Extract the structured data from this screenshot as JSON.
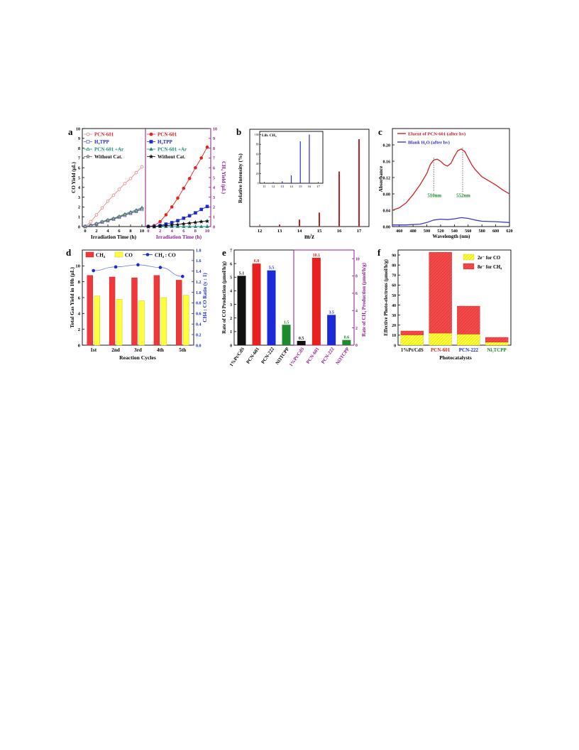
{
  "panels": [
    {
      "letter": "a",
      "left": {
        "ylabel": "CO Yield (μL)",
        "xlabel": "Irradiation Time (h)",
        "legend": [
          "PCN-601",
          "H₄TPP",
          "PCN-601 +Ar",
          "Without Cat."
        ]
      },
      "right": {
        "ylabel": "CH₄ Yield (μL)",
        "xlabel": "Irradiation Time (h)",
        "legend": [
          "PCN-601",
          "H₄TPP",
          "PCN-601 +Ar",
          "Without Cat."
        ]
      }
    },
    {
      "letter": "b",
      "ylabel": "Relative Intensity (%)",
      "xlabel": "m/z",
      "inset": {
        "title": "Lib. CH₄",
        "ylabel": "Relative Intensity (%)",
        "xlabel": "m/z"
      }
    },
    {
      "letter": "c",
      "ylabel": "Absorbance",
      "xlabel": "Wavelength (nm)",
      "legend": [
        "Eluent of PCN-601 (after hv)",
        "Blank H₂O (after hv)"
      ],
      "annotations": [
        "510nm",
        "552nm"
      ]
    },
    {
      "letter": "d",
      "ylabel": "Total Gas Yield in 10h (μL)",
      "y2label": "CH4 : CO Ratio (y : 1)",
      "xlabel": "Reaction Cycles",
      "legend": [
        "CH₄",
        "CO",
        "CH₄ : CO"
      ]
    },
    {
      "letter": "e",
      "ylabel": "Rate of CO Production (μmol/h/g)",
      "y2label": "Rate of CH₄ Production (μmol/h/g)"
    },
    {
      "letter": "f",
      "ylabel": "Effective Photo-electrons (μmol/h/g)",
      "xlabel": "Photocatalysts",
      "legend": [
        "2e⁻ for CO",
        "8e⁻ for CH₄"
      ]
    }
  ],
  "colors": {
    "red": "#e8201f",
    "blue": "#1a2ad8",
    "green": "#1d8b2c",
    "black": "#111111",
    "pink": "#e88a8a",
    "purple": "#8a1e8a",
    "yellow": "#ffff3a",
    "spectrum_red": "#d42020",
    "spectrum_blue": "#3a3ad0",
    "teal": "#1e8a7a"
  },
  "chart_data": [
    {
      "id": "a-left",
      "type": "line",
      "xlabel": "Irradiation Time (h)",
      "ylabel": "CO Yield (μL)",
      "xlim": [
        0,
        10
      ],
      "ylim": [
        0,
        10
      ],
      "xticks": [
        0,
        2,
        4,
        6,
        8,
        10
      ],
      "yticks": [
        0,
        1,
        2,
        3,
        4,
        5,
        6,
        7,
        8,
        9,
        10
      ],
      "series": [
        {
          "name": "PCN-601",
          "color": "#e88a8a",
          "marker": "circle-open",
          "x": [
            0,
            1,
            2,
            3,
            4,
            5,
            6,
            7,
            8,
            9,
            10
          ],
          "y": [
            0,
            0.5,
            1.2,
            1.9,
            2.6,
            3.2,
            3.8,
            4.4,
            4.9,
            5.5,
            6.1
          ]
        },
        {
          "name": "H₄TPP",
          "color": "#6a6ad8",
          "marker": "square-open",
          "x": [
            0,
            1,
            2,
            3,
            4,
            5,
            6,
            7,
            8,
            9,
            10
          ],
          "y": [
            0,
            0.1,
            0.25,
            0.45,
            0.6,
            0.75,
            0.95,
            1.15,
            1.35,
            1.55,
            1.75
          ]
        },
        {
          "name": "PCN-601 +Ar",
          "color": "#2aa07a",
          "marker": "triangle-open",
          "x": [
            0,
            1,
            2,
            3,
            4,
            5,
            6,
            7,
            8,
            9,
            10
          ],
          "y": [
            0,
            0.12,
            0.3,
            0.5,
            0.7,
            0.85,
            1.05,
            1.3,
            1.5,
            1.7,
            1.95
          ]
        },
        {
          "name": "Without Cat.",
          "color": "#666666",
          "marker": "star-open",
          "x": [
            0,
            1,
            2,
            3,
            4,
            5,
            6,
            7,
            8,
            9,
            10
          ],
          "y": [
            0,
            0.1,
            0.28,
            0.48,
            0.65,
            0.8,
            1.0,
            1.2,
            1.4,
            1.6,
            1.85
          ]
        }
      ]
    },
    {
      "id": "a-right",
      "type": "line",
      "xlabel": "Irradiation Time (h)",
      "ylabel": "CH₄ Yield (μL)",
      "xlim": [
        0,
        10
      ],
      "ylim": [
        0,
        10
      ],
      "xticks": [
        0,
        2,
        4,
        6,
        8,
        10
      ],
      "yticks": [
        0,
        1,
        2,
        3,
        4,
        5,
        6,
        7,
        8,
        9,
        10
      ],
      "series": [
        {
          "name": "PCN-601",
          "color": "#e8201f",
          "marker": "circle",
          "x": [
            0,
            1,
            2,
            3,
            4,
            5,
            6,
            7,
            8,
            9,
            10
          ],
          "y": [
            0,
            0.1,
            0.5,
            1.2,
            2.0,
            2.9,
            3.9,
            4.9,
            6.0,
            7.0,
            8.1
          ]
        },
        {
          "name": "H₄TPP",
          "color": "#1a2ad8",
          "marker": "square",
          "x": [
            0,
            1,
            2,
            3,
            4,
            5,
            6,
            7,
            8,
            9,
            10
          ],
          "y": [
            0,
            0.0,
            0.1,
            0.25,
            0.4,
            0.6,
            0.85,
            1.1,
            1.4,
            1.75,
            2.05
          ]
        },
        {
          "name": "PCN-601 +Ar",
          "color": "#1e8a7a",
          "marker": "triangle",
          "x": [
            0,
            1,
            2,
            3,
            4,
            5,
            6,
            7,
            8,
            9,
            10
          ],
          "y": [
            0,
            0,
            0,
            0,
            0,
            0,
            0,
            0,
            0,
            0,
            0
          ]
        },
        {
          "name": "Without Cat.",
          "color": "#111111",
          "marker": "star",
          "x": [
            0,
            1,
            2,
            3,
            4,
            5,
            6,
            7,
            8,
            9,
            10
          ],
          "y": [
            0,
            0.0,
            0.05,
            0.1,
            0.15,
            0.2,
            0.28,
            0.35,
            0.42,
            0.5,
            0.55
          ]
        }
      ]
    },
    {
      "id": "b",
      "type": "bar",
      "xlabel": "m/z",
      "ylabel": "Relative Intensity (%)",
      "xlim": [
        11.5,
        17.5
      ],
      "ylim": [
        0,
        100
      ],
      "xticks": [
        12,
        13,
        14,
        15,
        16,
        17
      ],
      "x": [
        12,
        13,
        14,
        15,
        16,
        17
      ],
      "values": [
        0.5,
        2,
        8,
        16,
        63,
        100
      ],
      "inset": {
        "title": "Lib. CH₄",
        "xlim": [
          10.5,
          17.5
        ],
        "ylim": [
          0,
          100
        ],
        "xticks": [
          11,
          12,
          13,
          14,
          15,
          16,
          17
        ],
        "yticks": [
          0,
          20,
          40,
          60,
          80,
          100
        ],
        "x": [
          12,
          13,
          14,
          15,
          16
        ],
        "values": [
          1,
          4,
          16,
          86,
          100
        ]
      }
    },
    {
      "id": "c",
      "type": "line",
      "xlabel": "Wavelength (nm)",
      "ylabel": "Absorbance",
      "xlim": [
        450,
        620
      ],
      "ylim": [
        0,
        0.24
      ],
      "xticks": [
        460,
        480,
        500,
        520,
        540,
        560,
        580,
        600,
        620
      ],
      "yticks": [
        0.0,
        0.04,
        0.08,
        0.12,
        0.16,
        0.2
      ],
      "series": [
        {
          "name": "Eluent of PCN-601 (after hv)",
          "color": "#d42020",
          "x": [
            450,
            460,
            470,
            480,
            490,
            500,
            505,
            510,
            515,
            520,
            525,
            530,
            535,
            540,
            545,
            550,
            555,
            560,
            565,
            570,
            580,
            590,
            600,
            610,
            620
          ],
          "y": [
            0.04,
            0.046,
            0.058,
            0.078,
            0.102,
            0.13,
            0.152,
            0.163,
            0.165,
            0.16,
            0.152,
            0.148,
            0.155,
            0.172,
            0.186,
            0.19,
            0.184,
            0.168,
            0.152,
            0.14,
            0.122,
            0.112,
            0.102,
            0.09,
            0.08
          ]
        },
        {
          "name": "Blank H₂O (after hv)",
          "color": "#3a3ad0",
          "x": [
            450,
            470,
            490,
            500,
            510,
            520,
            530,
            540,
            550,
            560,
            570,
            580,
            600,
            620
          ],
          "y": [
            0.004,
            0.004,
            0.006,
            0.01,
            0.016,
            0.018,
            0.017,
            0.019,
            0.022,
            0.02,
            0.016,
            0.013,
            0.012,
            0.01
          ]
        }
      ],
      "annotations": [
        {
          "text": "510nm",
          "x": 510
        },
        {
          "text": "552nm",
          "x": 552
        }
      ]
    },
    {
      "id": "d",
      "type": "bar",
      "xlabel": "Reaction Cycles",
      "ylabel": "Total Gas Yield in 10h (μL)",
      "y2label": "CH4 : CO Ratio (y : 1)",
      "ylim": [
        0,
        12
      ],
      "y2lim": [
        0,
        1.8
      ],
      "yticks": [
        0,
        2,
        4,
        6,
        8,
        10
      ],
      "y2ticks": [
        0.0,
        0.2,
        0.4,
        0.6,
        0.8,
        1.0,
        1.2,
        1.4,
        1.6,
        1.8
      ],
      "categories": [
        "1st",
        "2nd",
        "3rd",
        "4th",
        "5th"
      ],
      "series": [
        {
          "name": "CH₄",
          "color": "#e8201f",
          "values": [
            8.8,
            8.6,
            8.5,
            8.8,
            8.2
          ]
        },
        {
          "name": "CO",
          "color": "#ffff3a",
          "values": [
            6.2,
            5.8,
            5.6,
            6.0,
            6.3
          ]
        },
        {
          "name": "CH₄ : CO",
          "color": "#1a2ad8",
          "axis": "y2",
          "values": [
            1.41,
            1.48,
            1.52,
            1.47,
            1.3
          ]
        }
      ]
    },
    {
      "id": "e-left",
      "type": "bar",
      "ylabel": "Rate of CO Production (μmol/h/g)",
      "ylim": [
        0,
        7
      ],
      "yticks": [
        0,
        1,
        2,
        3,
        4,
        5,
        6,
        7
      ],
      "categories": [
        "1%Pt/CdS",
        "PCN-601",
        "PCN-222",
        "Ni3TCPP"
      ],
      "values": [
        5.1,
        6.0,
        5.5,
        1.5
      ],
      "bar_colors": [
        "#111111",
        "#e8201f",
        "#1a2ad8",
        "#1d8b2c"
      ],
      "data_labels": [
        "5.1",
        "6.0",
        "5.5",
        "1.5"
      ]
    },
    {
      "id": "e-right",
      "type": "bar",
      "ylabel": "Rate of CH₄ Production (μmol/h/g)",
      "ylim": [
        0,
        11
      ],
      "yticks": [
        0,
        2,
        4,
        6,
        8,
        10
      ],
      "categories": [
        "1%Pt/CdS",
        "PCN-601",
        "PCN-222",
        "Ni3TCPP"
      ],
      "values": [
        0.5,
        10.1,
        3.5,
        0.6
      ],
      "bar_colors": [
        "#111111",
        "#e8201f",
        "#1a2ad8",
        "#1d8b2c"
      ],
      "data_labels": [
        "0.5",
        "10.1",
        "3.5",
        "0.6"
      ]
    },
    {
      "id": "f",
      "type": "bar",
      "xlabel": "Photocatalysts",
      "ylabel": "Effective Photo-electrons (μmol/h/g)",
      "ylim": [
        0,
        95
      ],
      "yticks": [
        0,
        10,
        20,
        30,
        40,
        50,
        60,
        70,
        80,
        90
      ],
      "categories": [
        "1%Pt/CdS",
        "PCN-601",
        "PCN-222",
        "Ni₃TCPP"
      ],
      "category_colors": [
        "#111111",
        "#e8201f",
        "#1a2ad8",
        "#1d8b2c"
      ],
      "stacked": true,
      "series": [
        {
          "name": "2e⁻ for CO",
          "color": "#ffff3a",
          "values": [
            10.2,
            12.0,
            11.0,
            3.0
          ]
        },
        {
          "name": "8e⁻ for CH₄",
          "color": "#f04040",
          "values": [
            4.0,
            80.8,
            28.0,
            4.8
          ]
        }
      ]
    }
  ]
}
